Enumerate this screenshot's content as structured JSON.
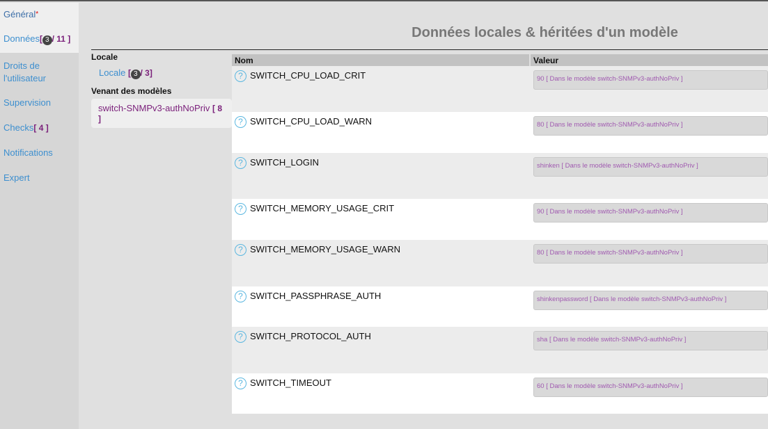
{
  "sidebar": {
    "items": [
      {
        "label": "Général",
        "mark": "*"
      },
      {
        "label": "Données",
        "badge": "3",
        "total": "11"
      },
      {
        "label": "Droits de l'utilisateur"
      },
      {
        "label": "Supervision"
      },
      {
        "label": "Checks",
        "count": "4"
      },
      {
        "label": "Notifications"
      },
      {
        "label": "Expert"
      }
    ]
  },
  "title": "Données locales & héritées d'un modèle",
  "panel": {
    "local_heading": "Locale",
    "local_label": "Locale",
    "local_badge": "3",
    "local_total": "3",
    "templates_heading": "Venant des modèles",
    "template_label": "switch-SNMPv3-authNoPriv",
    "template_count": "8"
  },
  "table": {
    "headers": [
      "Nom",
      "Valeur"
    ],
    "rows": [
      {
        "name": "SWITCH_CPU_LOAD_CRIT",
        "value": "90 [ Dans le modèle switch-SNMPv3-authNoPriv ]"
      },
      {
        "name": "SWITCH_CPU_LOAD_WARN",
        "value": "80 [ Dans le modèle switch-SNMPv3-authNoPriv ]"
      },
      {
        "name": "SWITCH_LOGIN",
        "value": "shinken [ Dans le modèle switch-SNMPv3-authNoPriv ]"
      },
      {
        "name": "SWITCH_MEMORY_USAGE_CRIT",
        "value": "90 [ Dans le modèle switch-SNMPv3-authNoPriv ]"
      },
      {
        "name": "SWITCH_MEMORY_USAGE_WARN",
        "value": "80 [ Dans le modèle switch-SNMPv3-authNoPriv ]"
      },
      {
        "name": "SWITCH_PASSPHRASE_AUTH",
        "value": "shinkenpassword [ Dans le modèle switch-SNMPv3-authNoPriv ]"
      },
      {
        "name": "SWITCH_PROTOCOL_AUTH",
        "value": "sha [ Dans le modèle switch-SNMPv3-authNoPriv ]"
      },
      {
        "name": "SWITCH_TIMEOUT",
        "value": "60 [ Dans le modèle switch-SNMPv3-authNoPriv ]"
      }
    ]
  },
  "help_icon": "?"
}
